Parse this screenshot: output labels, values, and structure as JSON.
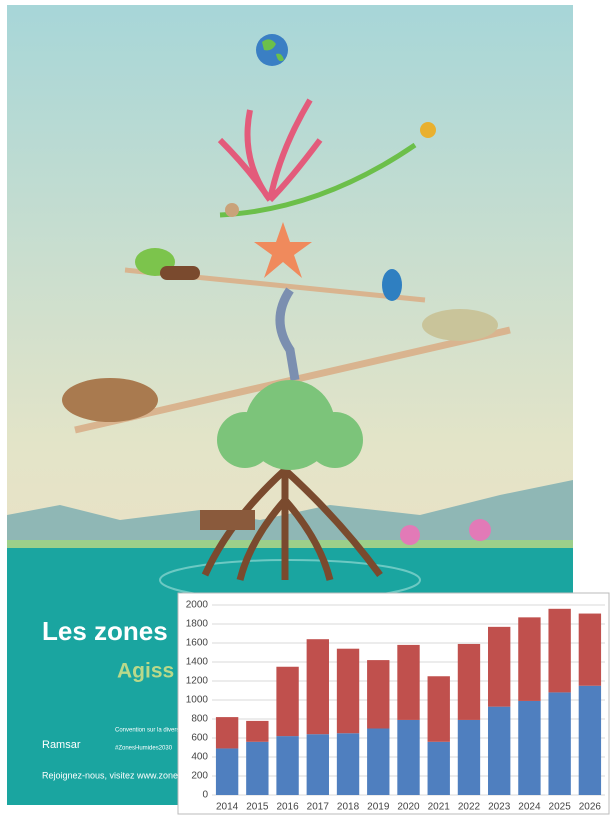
{
  "poster": {
    "title": "Les zones",
    "subtitle": "Agiss",
    "logo_ramsar": "Ramsar",
    "logo_cbd": "Convention sur la diversité biologique",
    "hashtag": "#ZonesHumides2030",
    "footer": "Rejoignez-nous, visitez www.zones-"
  },
  "chart_data": {
    "type": "bar",
    "stacked": true,
    "categories": [
      "2014",
      "2015",
      "2016",
      "2017",
      "2018",
      "2019",
      "2020",
      "2021",
      "2022",
      "2023",
      "2024",
      "2025",
      "2026"
    ],
    "series": [
      {
        "color": "#4f7fbf",
        "values": [
          490,
          560,
          620,
          640,
          650,
          700,
          790,
          560,
          790,
          930,
          990,
          1080,
          1150
        ]
      },
      {
        "color": "#c0504d",
        "values": [
          330,
          220,
          730,
          1000,
          890,
          720,
          790,
          690,
          800,
          840,
          880,
          880,
          760
        ]
      }
    ],
    "ylim": [
      0,
      2000
    ],
    "yticks": [
      0,
      200,
      400,
      600,
      800,
      1000,
      1200,
      1400,
      1600,
      1800,
      2000
    ],
    "grid": true
  }
}
